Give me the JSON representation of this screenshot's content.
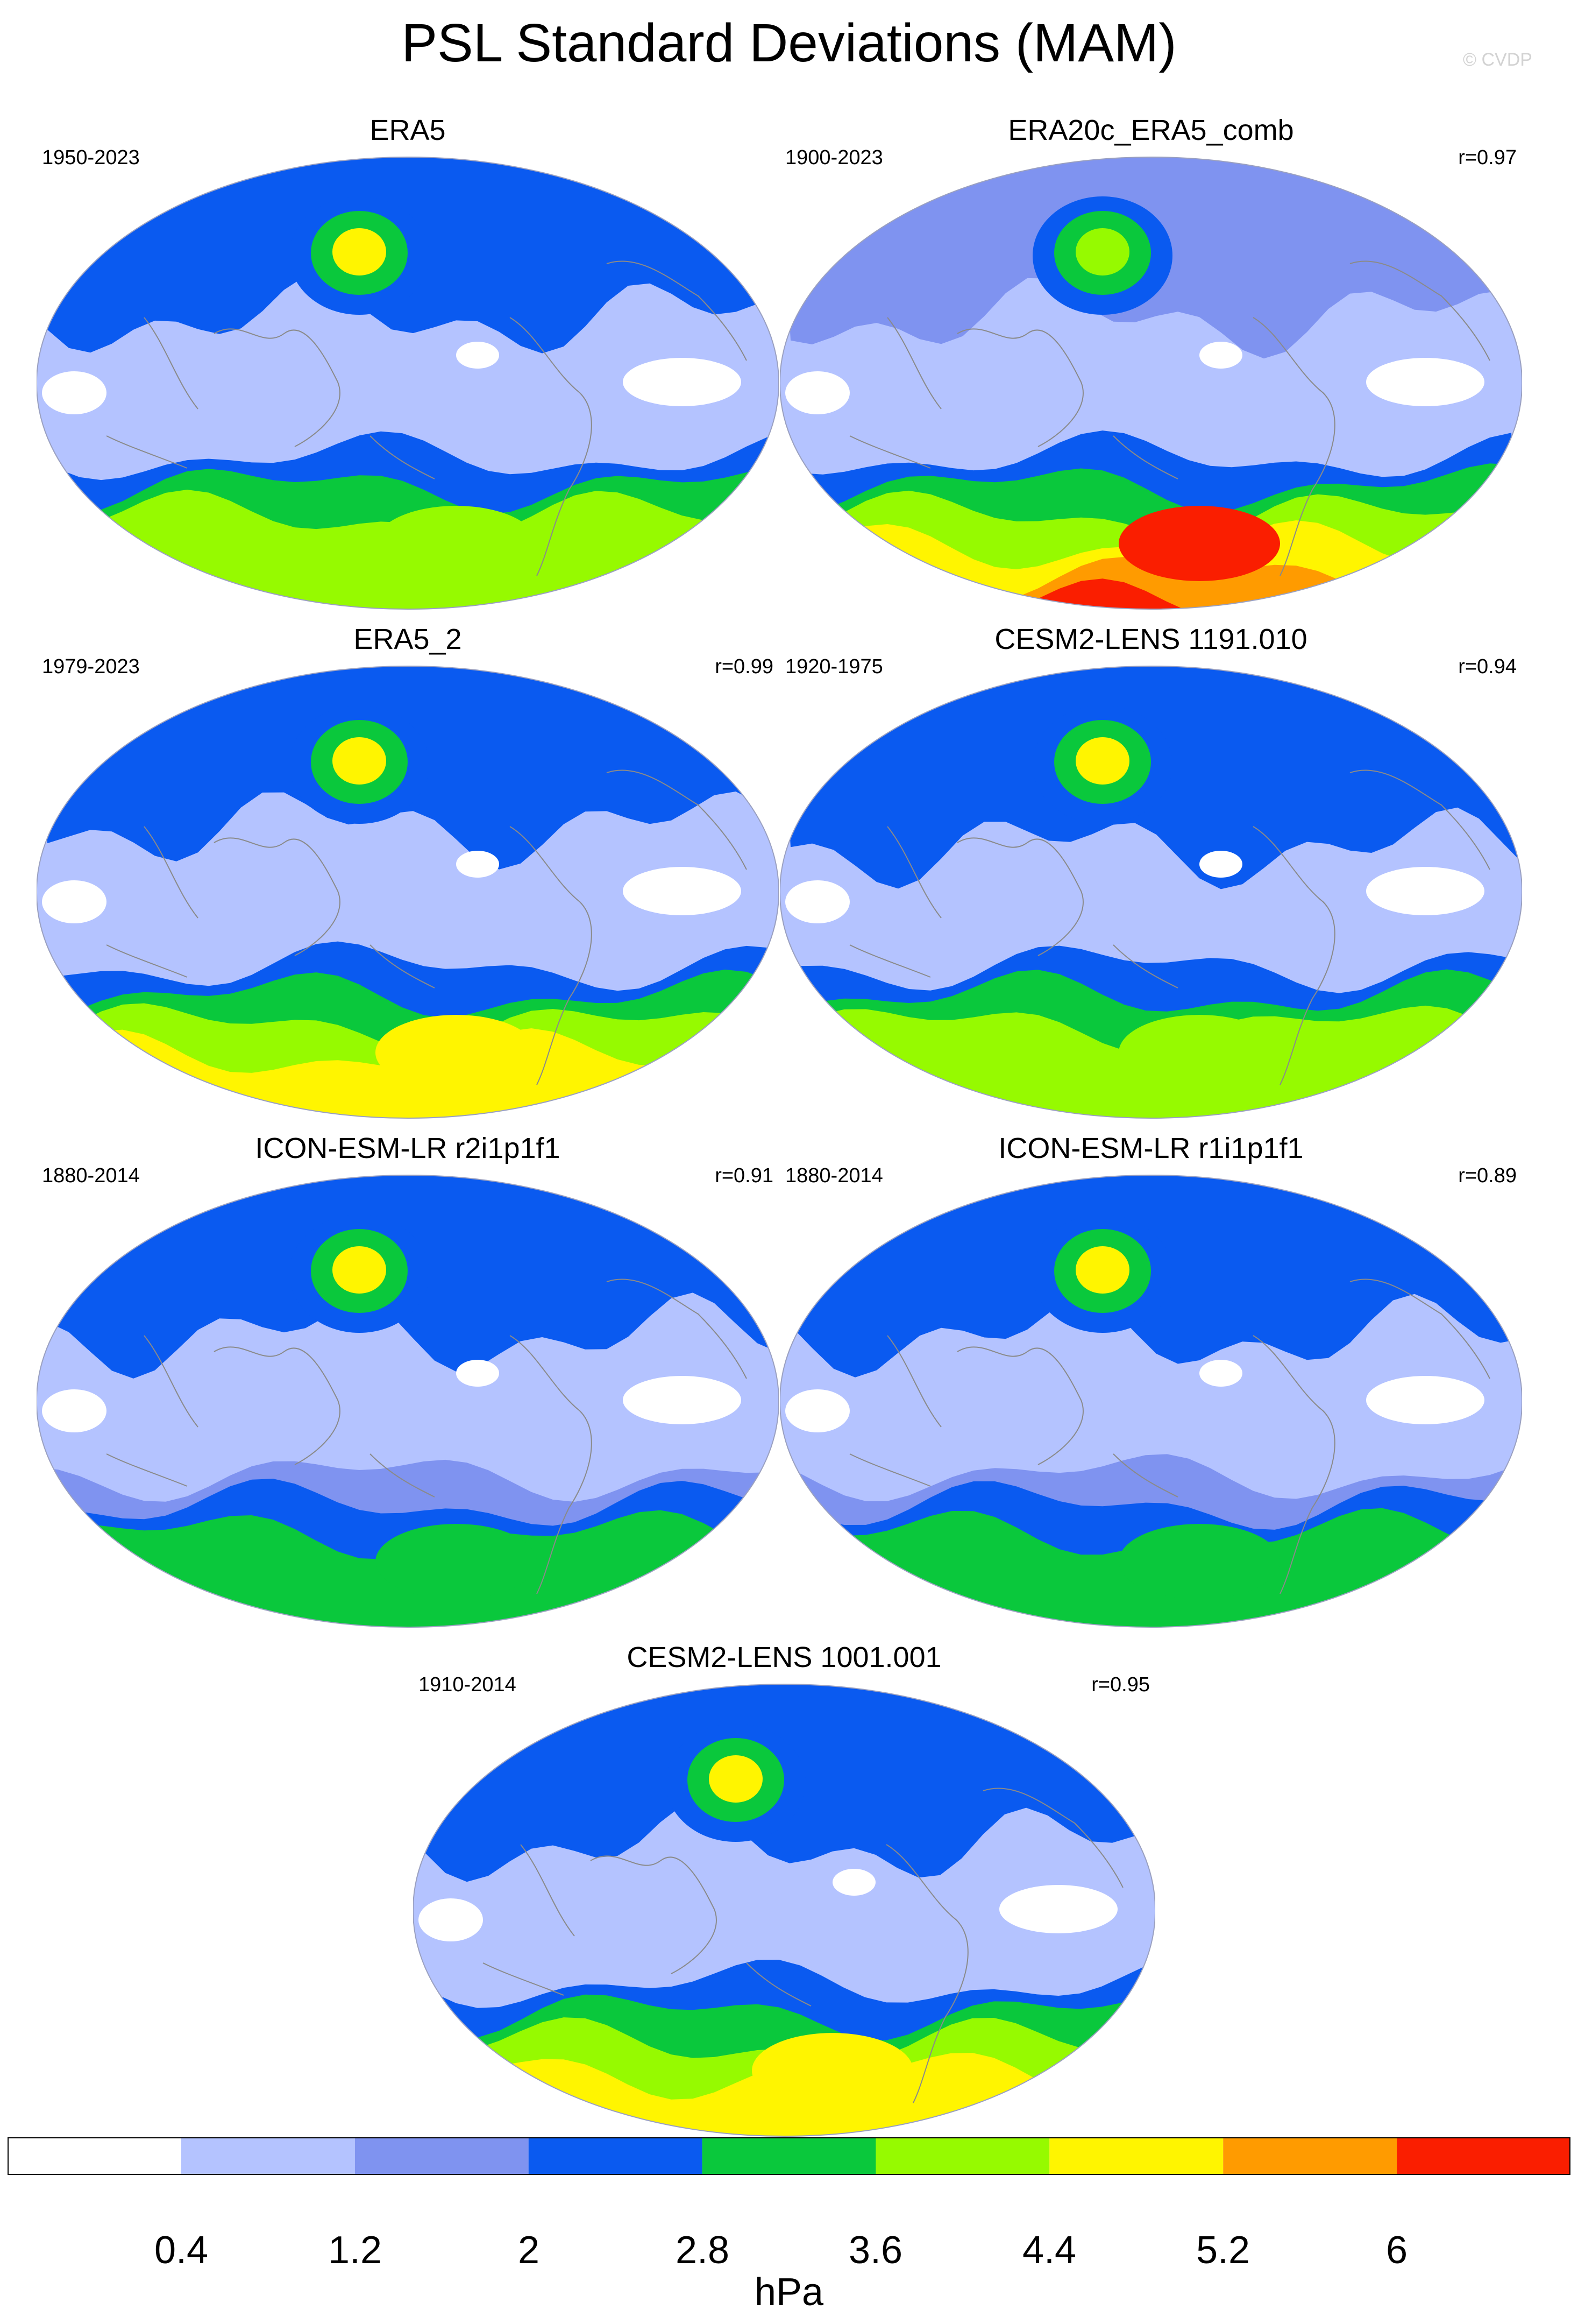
{
  "title": "PSL Standard Deviations (MAM)",
  "watermark": "© CVDP",
  "panels": [
    {
      "id": "era5",
      "name": "ERA5",
      "years": "1950-2023",
      "r": "",
      "profile": "reference"
    },
    {
      "id": "era20c",
      "name": "ERA20c_ERA5_comb",
      "years": "1900-2023",
      "r": "r=0.97",
      "profile": "south-strong"
    },
    {
      "id": "era5-2",
      "name": "ERA5_2",
      "years": "1979-2023",
      "r": "r=0.99",
      "profile": "reference-north"
    },
    {
      "id": "cesm2-1191",
      "name": "CESM2-LENS 1191.010",
      "years": "1920-1975",
      "r": "r=0.94",
      "profile": "north-strong"
    },
    {
      "id": "icon-r2",
      "name": "ICON-ESM-LR r2i1p1f1",
      "years": "1880-2014",
      "r": "r=0.91",
      "profile": "weak"
    },
    {
      "id": "icon-r1",
      "name": "ICON-ESM-LR r1i1p1f1",
      "years": "1880-2014",
      "r": "r=0.89",
      "profile": "weak"
    },
    {
      "id": "cesm2-1001",
      "name": "CESM2-LENS 1001.001",
      "years": "1910-2014",
      "r": "r=0.95",
      "profile": "north-max"
    }
  ],
  "colorbar": {
    "units": "hPa",
    "ticks": [
      "0.4",
      "1.2",
      "2",
      "2.8",
      "3.6",
      "4.4",
      "5.2",
      "6"
    ],
    "colors": [
      "#ffffff",
      "#b4c3ff",
      "#7f93f0",
      "#0a5af0",
      "#0ac83c",
      "#96fa00",
      "#fff500",
      "#ff9b00",
      "#fa1e00"
    ]
  }
}
